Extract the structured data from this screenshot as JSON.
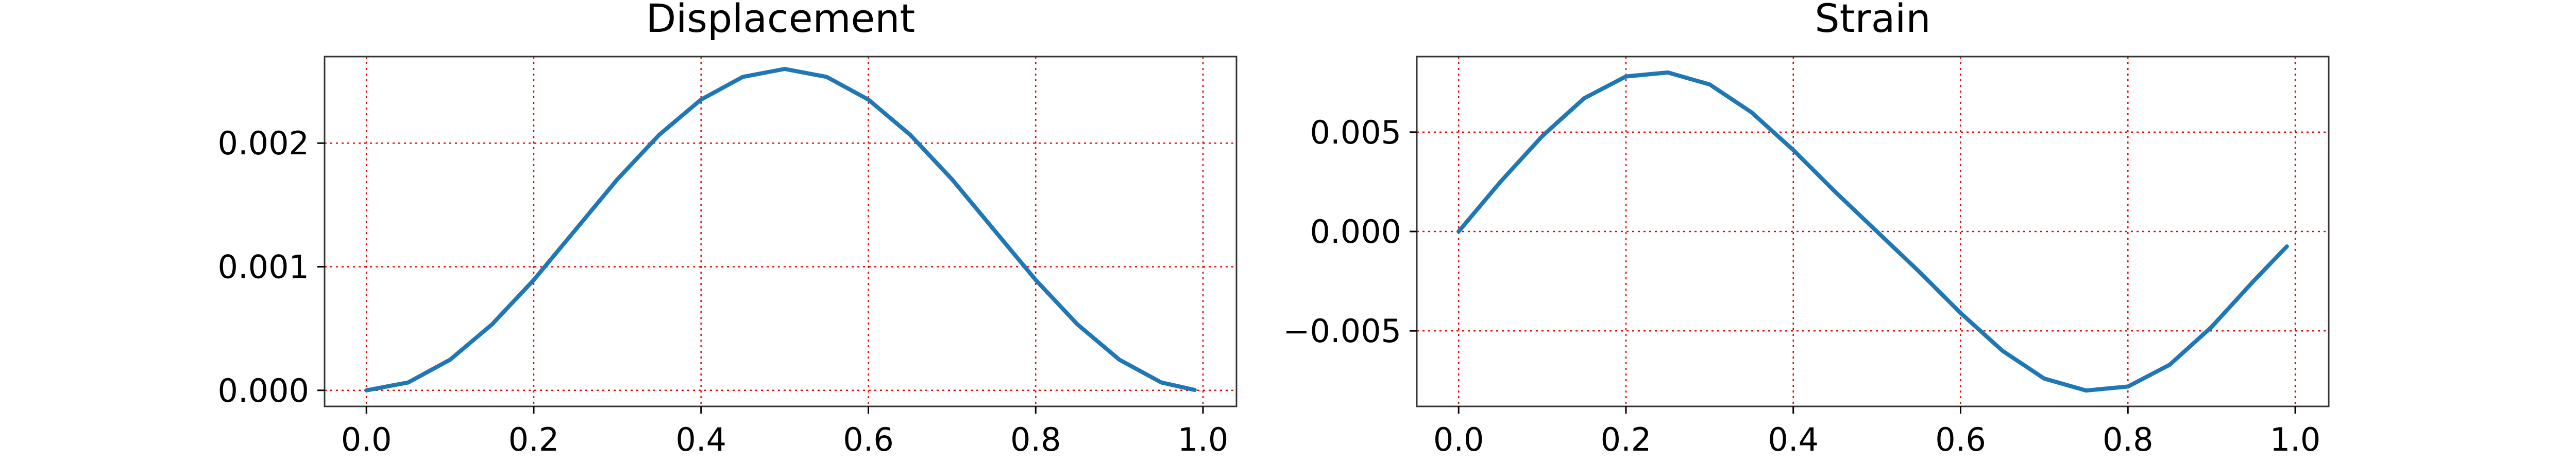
{
  "chart_data": [
    {
      "type": "line",
      "title": "Displacement",
      "xlabel": "",
      "ylabel": "",
      "xlim": [
        -0.05,
        1.04
      ],
      "ylim": [
        -0.00013,
        0.0027
      ],
      "xticks": [
        0.0,
        0.2,
        0.4,
        0.6,
        0.8,
        1.0
      ],
      "xtick_labels": [
        "0.0",
        "0.2",
        "0.4",
        "0.6",
        "0.8",
        "1.0"
      ],
      "yticks": [
        0.0,
        0.001,
        0.002
      ],
      "ytick_labels": [
        "0.000",
        "0.001",
        "0.002"
      ],
      "grid": true,
      "grid_color": "#e60000",
      "series": [
        {
          "color": "#1f77b4",
          "x": [
            0.0,
            0.05,
            0.1,
            0.15,
            0.2,
            0.25,
            0.3,
            0.35,
            0.4,
            0.45,
            0.5,
            0.55,
            0.6,
            0.65,
            0.7,
            0.75,
            0.8,
            0.85,
            0.9,
            0.95,
            0.99
          ],
          "y": [
            0.0,
            6.4e-05,
            0.000248,
            0.000533,
            0.000893,
            0.0013,
            0.001707,
            0.002067,
            0.002352,
            0.002536,
            0.0026,
            0.002536,
            0.002352,
            0.002067,
            0.001707,
            0.0013,
            0.000893,
            0.000533,
            0.000248,
            6.4e-05,
            3e-06
          ]
        }
      ]
    },
    {
      "type": "line",
      "title": "Strain",
      "xlabel": "",
      "ylabel": "",
      "xlim": [
        -0.05,
        1.04
      ],
      "ylim": [
        -0.0088,
        0.0088
      ],
      "xticks": [
        0.0,
        0.2,
        0.4,
        0.6,
        0.8,
        1.0
      ],
      "xtick_labels": [
        "0.0",
        "0.2",
        "0.4",
        "0.6",
        "0.8",
        "1.0"
      ],
      "yticks": [
        -0.005,
        0.0,
        0.005
      ],
      "ytick_labels": [
        "−0.005",
        "0.000",
        "0.005"
      ],
      "grid": true,
      "grid_color": "#e60000",
      "series": [
        {
          "color": "#1f77b4",
          "x": [
            0.0,
            0.05,
            0.1,
            0.15,
            0.2,
            0.25,
            0.3,
            0.35,
            0.4,
            0.45,
            0.5,
            0.55,
            0.6,
            0.65,
            0.7,
            0.75,
            0.8,
            0.85,
            0.9,
            0.95,
            0.99
          ],
          "y": [
            0.0,
            0.0025,
            0.0048,
            0.0067,
            0.0078,
            0.008,
            0.0074,
            0.006,
            0.0041,
            0.002,
            0.0,
            -0.002,
            -0.0041,
            -0.006,
            -0.0074,
            -0.008,
            -0.0078,
            -0.0067,
            -0.0048,
            -0.0025,
            -0.00075
          ]
        }
      ]
    }
  ]
}
